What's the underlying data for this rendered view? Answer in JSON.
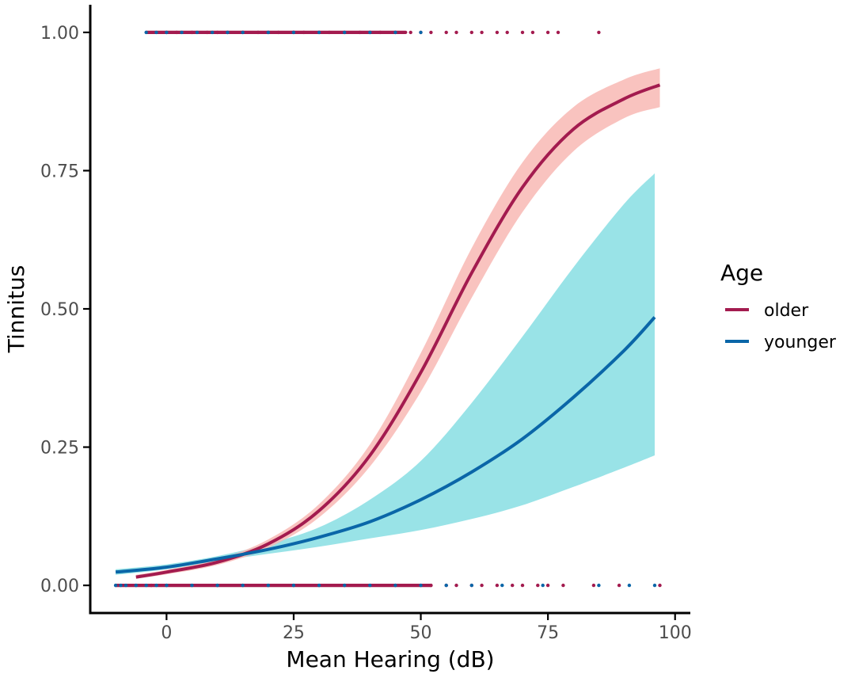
{
  "colors": {
    "older_line": "#a31b4f",
    "older_band": "#f8b9b4",
    "younger_line": "#0a66a8",
    "younger_band": "#8ee0e4",
    "axis": "#000000",
    "tick_text": "#4d4d4d"
  },
  "chart_data": {
    "type": "line",
    "title": "",
    "xlabel": "Mean Hearing (dB)",
    "ylabel": "Tinnitus",
    "xlim": [
      -15,
      103
    ],
    "ylim": [
      -0.05,
      1.05
    ],
    "x_ticks": [
      0,
      25,
      50,
      75,
      100
    ],
    "x_tick_labels": [
      "0",
      "25",
      "50",
      "75",
      "100"
    ],
    "y_ticks": [
      0,
      0.25,
      0.5,
      0.75,
      1.0
    ],
    "y_tick_labels": [
      "0.00",
      "0.25",
      "0.50",
      "0.75",
      "1.00"
    ],
    "legend": {
      "title": "Age",
      "position": "right",
      "entries": [
        {
          "label": "older",
          "color_key": "older_line"
        },
        {
          "label": "younger",
          "color_key": "younger_line"
        }
      ]
    },
    "series": [
      {
        "name": "older",
        "x": [
          -6,
          0,
          10,
          20,
          30,
          40,
          50,
          60,
          70,
          80,
          90,
          97
        ],
        "y": [
          0.015,
          0.024,
          0.042,
          0.075,
          0.135,
          0.235,
          0.385,
          0.565,
          0.72,
          0.825,
          0.88,
          0.905
        ],
        "lower": [
          0.012,
          0.02,
          0.037,
          0.068,
          0.123,
          0.215,
          0.35,
          0.52,
          0.675,
          0.785,
          0.845,
          0.865
        ],
        "upper": [
          0.019,
          0.028,
          0.047,
          0.083,
          0.147,
          0.255,
          0.42,
          0.61,
          0.765,
          0.865,
          0.915,
          0.935
        ]
      },
      {
        "name": "younger",
        "x": [
          -10,
          0,
          10,
          20,
          30,
          40,
          50,
          60,
          70,
          80,
          90,
          96
        ],
        "y": [
          0.024,
          0.033,
          0.048,
          0.065,
          0.087,
          0.115,
          0.155,
          0.205,
          0.265,
          0.34,
          0.425,
          0.485
        ],
        "lower": [
          0.019,
          0.029,
          0.044,
          0.057,
          0.07,
          0.085,
          0.1,
          0.12,
          0.145,
          0.178,
          0.213,
          0.235
        ],
        "upper": [
          0.029,
          0.038,
          0.053,
          0.075,
          0.105,
          0.155,
          0.225,
          0.33,
          0.45,
          0.575,
          0.69,
          0.745
        ]
      }
    ],
    "observed_points": {
      "description_free": true,
      "older_y1": [
        0,
        2,
        5,
        8,
        10,
        12,
        15,
        18,
        20,
        22,
        25,
        27,
        30,
        32,
        35,
        38,
        40,
        42,
        45,
        48,
        50,
        52,
        55,
        57,
        60,
        62,
        65,
        67,
        70,
        72,
        75,
        77,
        85
      ],
      "younger_y1": [
        -4,
        -2,
        0,
        3,
        6,
        9,
        12,
        15,
        20,
        25,
        30,
        35,
        40,
        45,
        50
      ],
      "older_y0": [
        -6,
        -3,
        0,
        5,
        10,
        15,
        20,
        25,
        30,
        35,
        40,
        45,
        50,
        52,
        55,
        57,
        60,
        62,
        65,
        68,
        70,
        73,
        75,
        78,
        84,
        89,
        97
      ],
      "younger_y0": [
        -10,
        -9,
        -8,
        -6,
        -4,
        -2,
        0,
        5,
        10,
        15,
        20,
        25,
        30,
        35,
        40,
        45,
        50,
        55,
        60,
        66,
        74,
        85,
        91,
        96
      ]
    }
  }
}
